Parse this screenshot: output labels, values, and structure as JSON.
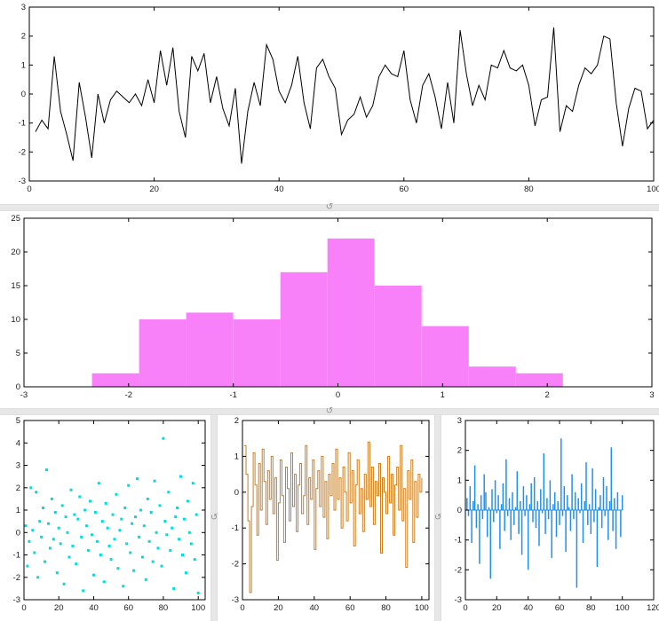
{
  "window": {
    "background": "#ffffff",
    "splitter_color": "#e7e7e7"
  },
  "icons": {
    "resize_grip": "↺"
  },
  "chart_data": [
    {
      "id": "signal-line",
      "type": "line",
      "title": "",
      "color": "#000000",
      "x_start": 1,
      "x_step": 1,
      "values": [
        -1.3,
        -0.9,
        -1.2,
        1.3,
        -0.6,
        -1.4,
        -2.3,
        0.4,
        -0.8,
        -2.2,
        0.0,
        -1.0,
        -0.2,
        0.1,
        -0.1,
        -0.3,
        0.0,
        -0.4,
        0.5,
        -0.3,
        1.5,
        0.3,
        1.6,
        -0.6,
        -1.5,
        1.3,
        0.8,
        1.4,
        -0.3,
        0.6,
        -0.5,
        -1.1,
        0.2,
        -2.4,
        -0.6,
        0.4,
        -0.4,
        1.7,
        1.2,
        0.1,
        -0.3,
        0.3,
        1.3,
        -0.3,
        -1.2,
        0.9,
        1.2,
        0.6,
        0.2,
        -1.4,
        -0.9,
        -0.7,
        -0.1,
        -0.8,
        -0.4,
        0.6,
        1.0,
        0.7,
        0.6,
        1.5,
        -0.2,
        -1.0,
        0.3,
        0.7,
        -0.1,
        -1.2,
        0.4,
        -1.0,
        2.2,
        0.7,
        -0.4,
        0.3,
        -0.2,
        1.0,
        0.9,
        1.5,
        0.9,
        0.8,
        1.0,
        0.3,
        -1.1,
        -0.2,
        -0.1,
        2.3,
        -1.3,
        -0.4,
        -0.6,
        0.3,
        0.9,
        0.7,
        1.0,
        2.0,
        1.9,
        -0.3,
        -1.8,
        -0.5,
        0.2,
        0.1,
        -1.2,
        -0.9
      ],
      "xlim": [
        0,
        100
      ],
      "ylim": [
        -3,
        3
      ],
      "xticks": [
        0,
        20,
        40,
        60,
        80,
        100
      ],
      "yticks": [
        -3,
        -2,
        -1,
        0,
        1,
        2,
        3
      ]
    },
    {
      "id": "histogram",
      "type": "histogram",
      "title": "",
      "color": "#f880f8",
      "bin_start": -2.35,
      "bin_width": 0.45,
      "counts": [
        2,
        10,
        11,
        10,
        17,
        22,
        15,
        9,
        3,
        2
      ],
      "xlim": [
        -3,
        3
      ],
      "ylim": [
        0,
        25
      ],
      "xticks": [
        -3,
        -2,
        -1,
        0,
        1,
        2,
        3
      ],
      "yticks": [
        0,
        5,
        10,
        15,
        20,
        25
      ]
    },
    {
      "id": "scatter",
      "type": "scatter",
      "title": "",
      "color": "#00dcdc",
      "x_start": 1,
      "x_step": 1,
      "values": [
        0.3,
        -1.5,
        -0.4,
        2.0,
        0.1,
        -0.9,
        1.8,
        -2.0,
        0.5,
        -0.2,
        1.1,
        -1.3,
        2.8,
        0.4,
        -0.7,
        1.5,
        -0.3,
        0.9,
        -1.8,
        0.2,
        -0.5,
        1.2,
        -2.3,
        0.7,
        0.0,
        -1.1,
        1.9,
        -0.6,
        0.8,
        -1.4,
        0.6,
        1.6,
        -0.2,
        -2.6,
        1.0,
        0.3,
        -0.8,
        1.4,
        -0.1,
        -1.9,
        0.9,
        -0.4,
        2.2,
        -1.0,
        0.5,
        -2.2,
        1.3,
        0.2,
        -0.6,
        -1.2,
        0.8,
        -0.3,
        1.7,
        -1.6,
        0.1,
        0.6,
        -2.4,
        1.1,
        -0.5,
        2.1,
        -0.9,
        0.4,
        -1.7,
        0.7,
        2.4,
        -0.2,
        1.0,
        -1.1,
        0.3,
        -2.1,
        1.5,
        -0.4,
        0.9,
        -1.3,
        2.3,
        0.0,
        -0.7,
        1.2,
        -1.5,
        4.2,
        0.5,
        -0.1,
        1.8,
        -0.8,
        0.2,
        -2.5,
        0.7,
        1.1,
        -0.3,
        2.5,
        -1.0,
        0.6,
        -1.8,
        1.4,
        0.0,
        -0.5,
        2.2,
        -1.2,
        0.8,
        -2.7
      ],
      "xlim": [
        0,
        104
      ],
      "ylim": [
        -3,
        5
      ],
      "xticks": [
        0,
        20,
        40,
        60,
        80,
        100
      ],
      "yticks": [
        -3,
        -2,
        -1,
        0,
        1,
        2,
        3,
        4,
        5
      ]
    },
    {
      "id": "stairs",
      "type": "stairs",
      "title": "",
      "color": "#cc7f1f",
      "x_start": 1,
      "x_step": 1,
      "values": [
        1.3,
        0.5,
        -0.8,
        -2.8,
        -0.4,
        1.1,
        0.2,
        -1.2,
        0.8,
        -0.5,
        1.2,
        0.3,
        -0.9,
        0.6,
        -0.2,
        1.0,
        -0.6,
        0.4,
        -1.9,
        -0.3,
        0.9,
        -0.1,
        -1.4,
        0.7,
        0.1,
        -0.8,
        1.1,
        -0.4,
        0.5,
        -1.1,
        0.2,
        0.8,
        -0.6,
        -0.1,
        1.3,
        -0.9,
        0.4,
        -0.2,
        0.9,
        -1.6,
        0.1,
        0.6,
        -0.4,
        1.0,
        -0.7,
        0.3,
        -1.3,
        0.5,
        -0.1,
        0.8,
        -0.5,
        1.2,
        -0.2,
        0.4,
        -1.0,
        0.7,
        0.0,
        -0.8,
        1.1,
        -0.3,
        0.6,
        -1.5,
        0.2,
        0.9,
        -0.6,
        0.1,
        -1.1,
        0.5,
        -0.2,
        1.4,
        -0.4,
        0.7,
        -0.9,
        0.3,
        -0.1,
        0.8,
        -1.7,
        0.4,
        0.0,
        -0.6,
        1.0,
        -0.3,
        0.5,
        -1.2,
        0.2,
        0.7,
        -0.5,
        1.3,
        -0.8,
        0.1,
        -2.1,
        0.6,
        -0.2,
        0.9,
        -1.4,
        0.3,
        -0.7,
        0.5,
        0.0,
        0.4
      ],
      "xlim": [
        0,
        104
      ],
      "ylim": [
        -3,
        2
      ],
      "xticks": [
        0,
        20,
        40,
        60,
        80,
        100
      ],
      "yticks": [
        -3,
        -2,
        -1,
        0,
        1,
        2
      ]
    },
    {
      "id": "stem",
      "type": "stem",
      "title": "",
      "color": "#2090ee",
      "x_start": 1,
      "x_step": 1,
      "values": [
        0.4,
        -0.2,
        0.8,
        -1.1,
        0.3,
        1.5,
        -0.6,
        0.2,
        -1.8,
        0.5,
        -0.3,
        1.2,
        0.6,
        -0.9,
        0.1,
        -2.3,
        0.7,
        -0.4,
        1.0,
        -0.1,
        0.5,
        -1.3,
        0.2,
        0.9,
        -0.7,
        1.7,
        -0.2,
        0.4,
        -1.0,
        0.6,
        -0.5,
        0.1,
        1.3,
        -0.8,
        0.3,
        -1.5,
        0.8,
        -0.2,
        0.5,
        -2.0,
        0.2,
        0.9,
        -0.4,
        1.1,
        -0.6,
        0.3,
        -1.2,
        0.7,
        -0.1,
        1.9,
        -0.8,
        0.4,
        -0.3,
        1.0,
        -1.6,
        0.2,
        0.6,
        -0.9,
        0.3,
        -0.5,
        2.4,
        -0.2,
        0.8,
        -1.4,
        0.5,
        0.1,
        -0.7,
        1.2,
        -0.3,
        0.6,
        -2.6,
        0.4,
        -0.1,
        0.9,
        -1.1,
        0.3,
        1.6,
        -0.5,
        0.2,
        -0.8,
        1.4,
        -0.4,
        0.7,
        -1.9,
        0.1,
        0.5,
        -0.6,
        1.1,
        -0.2,
        0.8,
        -1.0,
        0.3,
        2.1,
        -0.7,
        0.4,
        -1.3,
        0.6,
        0.0,
        -0.9,
        0.5
      ],
      "xlim": [
        0,
        120
      ],
      "ylim": [
        -3,
        3
      ],
      "xticks": [
        0,
        20,
        40,
        60,
        80,
        100,
        120
      ],
      "yticks": [
        -3,
        -2,
        -1,
        0,
        1,
        2,
        3
      ]
    }
  ]
}
